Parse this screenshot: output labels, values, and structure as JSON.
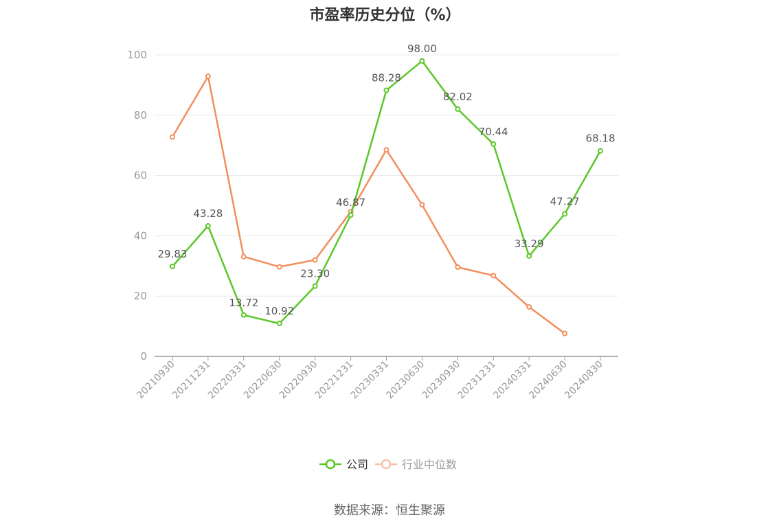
{
  "chart_data": {
    "type": "line",
    "title": "市盈率历史分位（%）",
    "categories": [
      "20210930",
      "20211231",
      "20220331",
      "20220630",
      "20220930",
      "20221231",
      "20230331",
      "20230630",
      "20230930",
      "20231231",
      "20240331",
      "20240630",
      "20240830"
    ],
    "ylim": [
      0,
      100
    ],
    "yticks": [
      0,
      20,
      40,
      60,
      80,
      100
    ],
    "grid": true,
    "legend": "bottom-center",
    "series": [
      {
        "name": "公司",
        "color": "#5ac727",
        "values": [
          29.83,
          43.28,
          13.72,
          10.92,
          23.3,
          46.87,
          88.28,
          98.0,
          82.02,
          70.44,
          33.29,
          47.27,
          68.18
        ],
        "labels": [
          "29.83",
          "43.28",
          "13.72",
          "10.92",
          "23.30",
          "46.87",
          "88.28",
          "98.00",
          "82.02",
          "70.44",
          "33.29",
          "47.27",
          "68.18"
        ]
      },
      {
        "name": "行业中位数",
        "color": "#f28e5c",
        "values": [
          72.8,
          92.9,
          33.1,
          29.7,
          32.0,
          48.0,
          68.5,
          50.3,
          29.6,
          26.8,
          16.4,
          7.6,
          null
        ]
      }
    ]
  },
  "source": "数据来源：恒生聚源"
}
